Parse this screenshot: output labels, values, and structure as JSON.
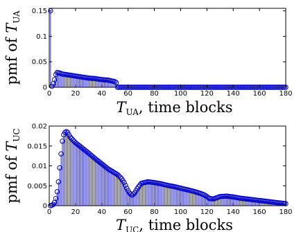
{
  "chart_data": [
    {
      "type": "stem",
      "xlabel": {
        "var": "T",
        "sub": "UA",
        "rest": ", time blocks"
      },
      "ylabel": {
        "prefix": "pmf of ",
        "var": "T",
        "sub": "UA"
      },
      "xlim": [
        0,
        180
      ],
      "ylim": [
        0,
        0.155
      ],
      "xticks": [
        "0",
        "20",
        "40",
        "60",
        "80",
        "100",
        "120",
        "140",
        "160",
        "180"
      ],
      "yticks": [
        "0",
        "0.05",
        "0.1",
        "0.15"
      ],
      "ytick_values": [
        0,
        0.05,
        0.1,
        0.15
      ],
      "x": [
        1,
        2,
        3,
        4,
        5,
        6,
        8,
        10,
        15,
        20,
        25,
        30,
        35,
        40,
        45,
        50,
        51,
        52,
        180
      ],
      "y": [
        0.15,
        0.002,
        0.007,
        0.015,
        0.025,
        0.029,
        0.028,
        0.026,
        0.024,
        0.022,
        0.02,
        0.018,
        0.017,
        0.015,
        0.014,
        0.011,
        0.009,
        0.0,
        0.0
      ]
    },
    {
      "type": "stem",
      "xlabel": {
        "var": "T",
        "sub": "UC",
        "rest": ", time blocks"
      },
      "ylabel": {
        "prefix": "pmf of ",
        "var": "T",
        "sub": "UC"
      },
      "xlim": [
        0,
        180
      ],
      "ylim": [
        0,
        0.02
      ],
      "xticks": [
        "0",
        "20",
        "40",
        "60",
        "80",
        "100",
        "120",
        "140",
        "160",
        "180"
      ],
      "yticks": [
        "0",
        "0.005",
        "0.01",
        "0.015",
        "0.02"
      ],
      "ytick_values": [
        0,
        0.005,
        0.01,
        0.015,
        0.02
      ],
      "x": [
        1,
        2,
        3,
        4,
        5,
        6,
        7,
        8,
        9,
        10,
        11,
        12,
        13,
        14,
        15,
        16,
        18,
        20,
        25,
        30,
        35,
        40,
        45,
        50,
        52,
        55,
        57,
        59,
        61,
        63,
        65,
        67,
        70,
        75,
        80,
        85,
        90,
        95,
        100,
        105,
        110,
        115,
        118,
        120,
        122,
        125,
        130,
        135,
        140,
        145,
        150,
        155,
        160,
        165,
        170,
        175,
        180
      ],
      "y": [
        0.0,
        0.0001,
        0.0003,
        0.0008,
        0.0018,
        0.0035,
        0.006,
        0.0095,
        0.013,
        0.0162,
        0.0178,
        0.0184,
        0.0186,
        0.0184,
        0.0178,
        0.0172,
        0.0165,
        0.0158,
        0.0145,
        0.0132,
        0.0118,
        0.0105,
        0.0092,
        0.0082,
        0.0078,
        0.0068,
        0.0058,
        0.0044,
        0.0032,
        0.0026,
        0.0032,
        0.0043,
        0.0056,
        0.006,
        0.0058,
        0.0055,
        0.0051,
        0.0048,
        0.0044,
        0.004,
        0.0036,
        0.0031,
        0.0027,
        0.0023,
        0.0018,
        0.0017,
        0.0023,
        0.0024,
        0.0022,
        0.0019,
        0.0017,
        0.0015,
        0.0013,
        0.0011,
        0.0009,
        0.0007,
        0.0005
      ]
    }
  ],
  "colors": {
    "stem": "#0000cc",
    "axis": "#000000"
  }
}
